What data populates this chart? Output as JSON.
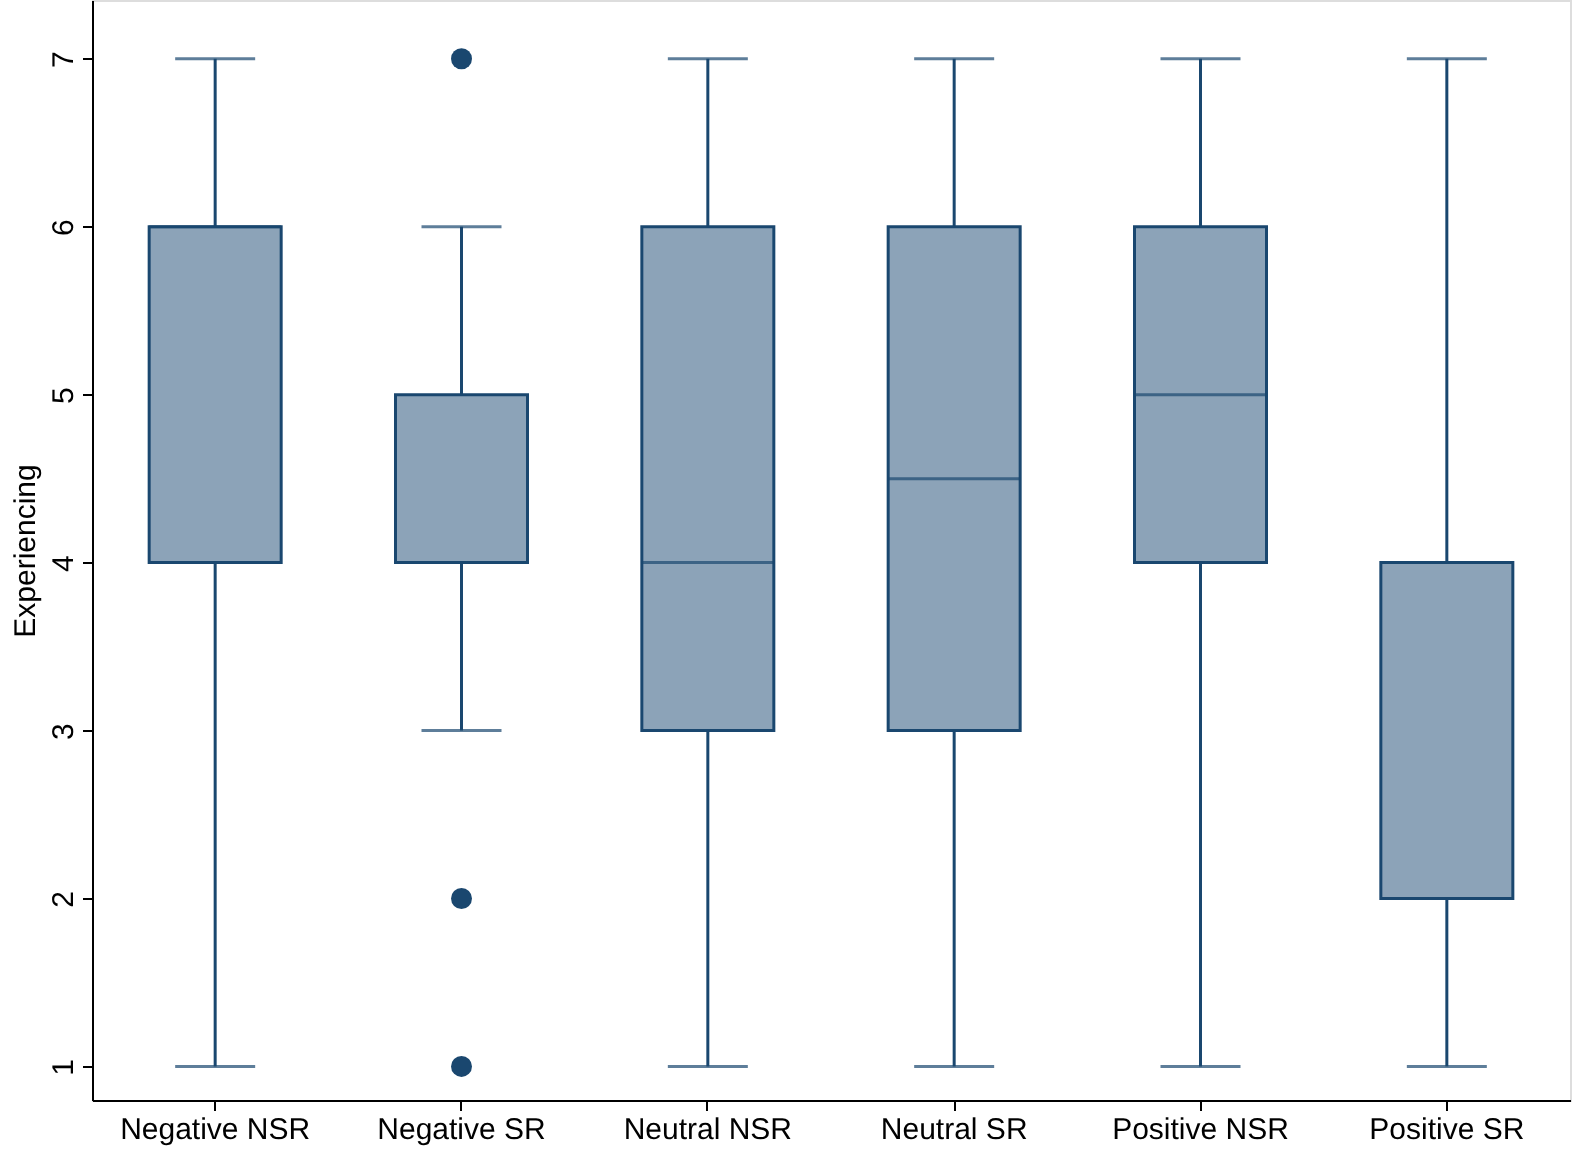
{
  "chart_data": {
    "type": "box",
    "ylabel": "Experiencing",
    "categories": [
      "Negative NSR",
      "Negative SR",
      "Neutral NSR",
      "Neutral SR",
      "Positive NSR",
      "Positive SR"
    ],
    "series": [
      {
        "color": "#8ca3b8",
        "boxes": [
          {
            "low": 1,
            "q1": 4,
            "median": 6,
            "q3": 6,
            "high": 7
          },
          {
            "low": 3,
            "q1": 4,
            "median": 4,
            "q3": 5,
            "high": 6,
            "outliers": [
              7,
              2,
              1
            ]
          },
          {
            "low": 1,
            "q1": 3,
            "median": 4,
            "q3": 6,
            "high": 7
          },
          {
            "low": 1,
            "q1": 3,
            "median": 4.5,
            "q3": 6,
            "high": 7
          },
          {
            "low": 1,
            "q1": 4,
            "median": 5,
            "q3": 6,
            "high": 7
          },
          {
            "low": 1,
            "q1": 2,
            "median": 4,
            "q3": 4,
            "high": 7
          }
        ]
      }
    ],
    "ylim": [
      0.8,
      7.35
    ],
    "yticks": [
      1,
      2,
      3,
      4,
      5,
      6,
      7
    ],
    "grid": false
  }
}
